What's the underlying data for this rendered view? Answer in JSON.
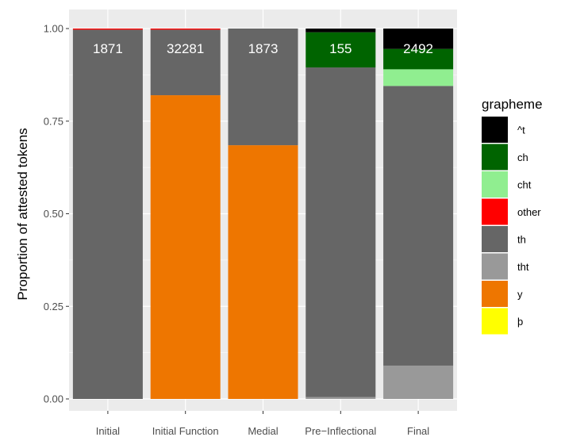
{
  "chart_data": {
    "type": "bar",
    "stacked": true,
    "categories": [
      "Initial",
      "Initial Function",
      "Medial",
      "Pre−Inflectional",
      "Final"
    ],
    "counts": [
      "1871",
      "32281",
      "1873",
      "155",
      "2492"
    ],
    "ylabel": "Proportion of attested tokens",
    "xlabel": "",
    "ylim": [
      0,
      1
    ],
    "yticks": [
      "0.00",
      "0.25",
      "0.50",
      "0.75",
      "1.00"
    ],
    "grid": true,
    "legend_title": "grapheme",
    "legend_position": "right",
    "series": [
      {
        "name": "^t",
        "color": "#000000",
        "values": [
          0.0,
          0.0,
          0.0,
          0.01,
          0.055
        ]
      },
      {
        "name": "ch",
        "color": "#006400",
        "values": [
          0.0,
          0.0,
          0.0,
          0.095,
          0.055
        ]
      },
      {
        "name": "cht",
        "color": "#90EE90",
        "values": [
          0.0,
          0.0,
          0.0,
          0.0,
          0.045
        ]
      },
      {
        "name": "other",
        "color": "#FF0000",
        "values": [
          0.003,
          0.003,
          0.0,
          0.0,
          0.0
        ]
      },
      {
        "name": "th",
        "color": "#666666",
        "values": [
          0.997,
          0.177,
          0.315,
          0.89,
          0.755
        ]
      },
      {
        "name": "tht",
        "color": "#999999",
        "values": [
          0.0,
          0.0,
          0.0,
          0.005,
          0.09
        ]
      },
      {
        "name": "y",
        "color": "#EE7600",
        "values": [
          0.0,
          0.82,
          0.685,
          0.0,
          0.0
        ]
      },
      {
        "name": "þ",
        "color": "#FFFF00",
        "values": [
          0.0,
          0.0,
          0.0,
          0.0,
          0.0
        ]
      }
    ]
  }
}
